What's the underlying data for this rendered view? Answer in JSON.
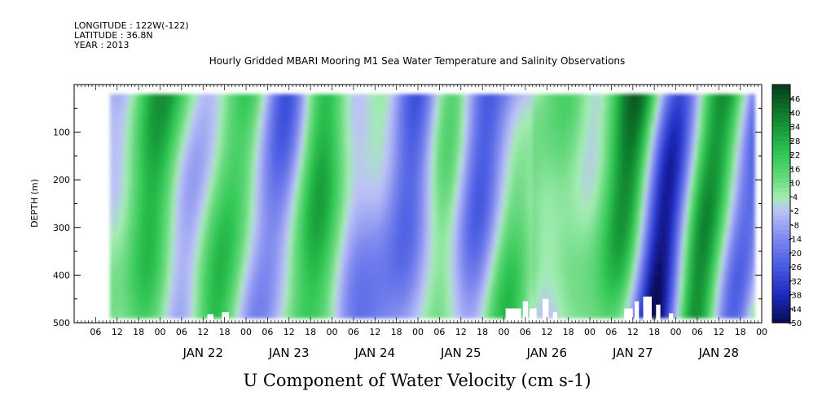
{
  "header": {
    "longitude": "LONGITUDE : 122W(-122)",
    "latitude": "LATITUDE : 36.8N",
    "year": "YEAR : 2013"
  },
  "chart_data": {
    "type": "heatmap",
    "title": "Hourly Gridded MBARI Mooring M1 Sea Water Temperature and Salinity Observations",
    "subtitle": "U Component of Water Velocity (cm s-1)",
    "ylabel": "DEPTH (m)",
    "xlabel": "",
    "x_range": [
      "2013-01-21T00:00",
      "2013-01-28T23:59"
    ],
    "y_range": [
      500,
      0
    ],
    "y_inverted": true,
    "ytick_labels": [
      "100",
      "200",
      "300",
      "400",
      "500"
    ],
    "xtick_labels": [
      "06",
      "12",
      "18",
      "00",
      "06",
      "12",
      "18",
      "00",
      "06",
      "12",
      "18",
      "00",
      "06",
      "12",
      "18",
      "00",
      "06",
      "12",
      "18",
      "00",
      "06",
      "12",
      "18",
      "00",
      "06",
      "12",
      "18",
      "00",
      "06",
      "12",
      "18",
      "00"
    ],
    "day_labels": [
      "JAN 22",
      "JAN 23",
      "JAN 24",
      "JAN 25",
      "JAN 26",
      "JAN 27",
      "JAN 28"
    ],
    "data_time_range": [
      "2013-01-21T10:00",
      "2013-01-28T22:00"
    ],
    "data_depth_range": [
      20,
      490
    ],
    "colorbar": {
      "labels": [
        "46",
        "40",
        "34",
        "28",
        "22",
        "16",
        "10",
        "4",
        "-2",
        "-8",
        "-14",
        "-20",
        "-26",
        "-32",
        "-38",
        "-44",
        "-50"
      ],
      "vmin": -50,
      "vmax": 52
    },
    "colors": {
      "strong_positive": "#0a4d1e",
      "positive": "#22cc44",
      "weak_positive": "#a0eeb0",
      "near_zero": "#c8cef8",
      "negative": "#8890ee",
      "strong_negative": "#10106a"
    }
  }
}
